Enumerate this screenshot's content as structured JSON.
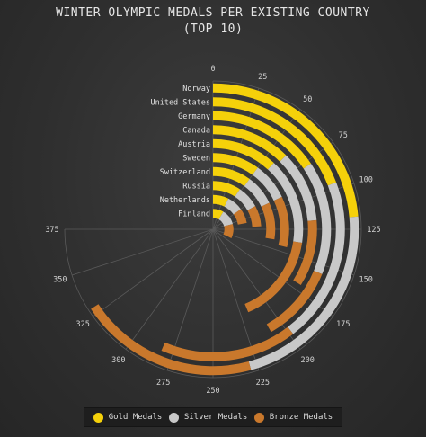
{
  "title_line1": "WINTER OLYMPIC MEDALS PER EXISTING COUNTRY",
  "title_line2": "(TOP 10)",
  "colors": {
    "gold": "#f5d10a",
    "silver": "#c8c8c8",
    "bronze": "#c9782c",
    "background": "#2f2f2f"
  },
  "legend": {
    "gold": "Gold Medals",
    "silver": "Silver Medals",
    "bronze": "Bronze Medals"
  },
  "chart_data": {
    "type": "radial-stacked-bar",
    "title": "WINTER OLYMPIC MEDALS PER EXISTING COUNTRY (TOP 10)",
    "scale_max": 375,
    "ticks": [
      0,
      25,
      50,
      75,
      100,
      125,
      150,
      175,
      200,
      225,
      250,
      275,
      300,
      325,
      350,
      375
    ],
    "categories": [
      "Norway",
      "United States",
      "Germany",
      "Canada",
      "Austria",
      "Sweden",
      "Switzerland",
      "Russia",
      "Netherlands",
      "Finland"
    ],
    "series": [
      {
        "name": "Gold Medals",
        "key": "gold",
        "values": [
          118,
          96,
          78,
          62,
          59,
          50,
          50,
          47,
          37,
          42
        ]
      },
      {
        "name": "Silver Medals",
        "key": "silver",
        "values": [
          111,
          102,
          78,
          56,
          78,
          40,
          40,
          38,
          38,
          62
        ]
      },
      {
        "name": "Bronze Medals",
        "key": "bronze",
        "values": [
          100,
          84,
          53,
          52,
          81,
          54,
          48,
          35,
          35,
          57
        ]
      }
    ]
  }
}
